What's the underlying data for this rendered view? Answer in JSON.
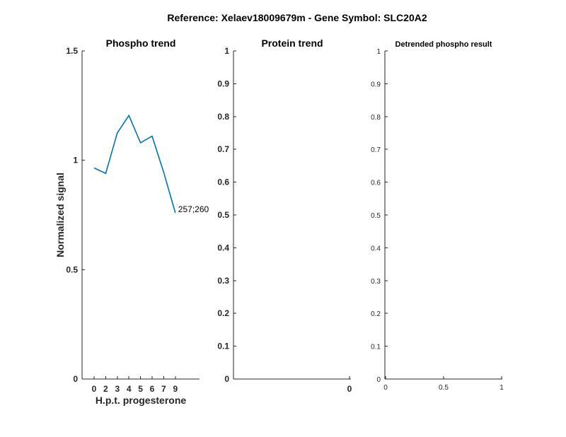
{
  "figure": {
    "title": "Reference:  Xelaev18009679m - Gene Symbol:  SLC20A2"
  },
  "chart_data": [
    {
      "type": "line",
      "title": "Phospho trend",
      "xlabel": "H.p.t. progesterone",
      "ylabel": "Normalized signal",
      "categories": [
        "0",
        "2",
        "3",
        "4",
        "5",
        "6",
        "7",
        "9"
      ],
      "series": [
        {
          "values": [
            0.965,
            0.94,
            1.125,
            1.205,
            1.08,
            1.11,
            0.945,
            0.76
          ]
        }
      ],
      "ylim": [
        0,
        1.5
      ],
      "yticks": [
        "0",
        "0.5",
        "1",
        "1.5"
      ],
      "annotation": "257;260",
      "color": "#0072BD"
    },
    {
      "type": "line",
      "title": "Protein trend",
      "xlabel": "",
      "ylabel": "",
      "categories": [
        "0"
      ],
      "series": [],
      "ylim": [
        0,
        1
      ],
      "yticks": [
        "0",
        "0.1",
        "0.2",
        "0.3",
        "0.4",
        "0.5",
        "0.6",
        "0.7",
        "0.8",
        "0.9",
        "1"
      ]
    },
    {
      "type": "line",
      "title": "Detrended phospho result",
      "xlabel": "",
      "ylabel": "",
      "x": [
        0,
        0.5,
        1
      ],
      "xticks": [
        "0",
        "0.5",
        "1"
      ],
      "series": [],
      "ylim": [
        0,
        1
      ],
      "yticks": [
        "0",
        "0.1",
        "0.2",
        "0.3",
        "0.4",
        "0.5",
        "0.6",
        "0.7",
        "0.8",
        "0.9",
        "1"
      ]
    }
  ]
}
